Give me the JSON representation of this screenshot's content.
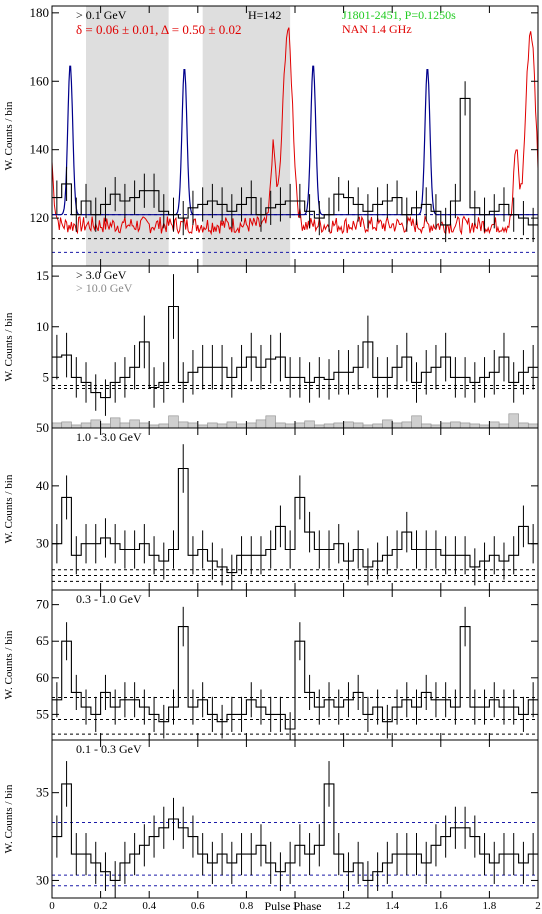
{
  "figure": {
    "xlabel": "Pulse Phase",
    "source_label": "J1801-2451, P=0.1250s",
    "radio_label": "NAN 1.4 GHz",
    "colors": {
      "hist": "#000000",
      "radio": "#e00000",
      "fit": "#00008b",
      "highE": "#8a8a8a",
      "offpulse": "#dedede",
      "source_label": "#22cc22",
      "radio_label": "#e00000"
    }
  },
  "chart_data": [
    {
      "type": "histogram",
      "panel": "> 0.1 GeV",
      "energy_label": "> 0.1 GeV",
      "ylabel": "W. Counts / bin",
      "xlim": [
        0,
        2
      ],
      "ylim": [
        106,
        182
      ],
      "yticks": [
        120,
        140,
        160,
        180
      ],
      "stat_delta": "δ = 0.06 ± 0.01, Δ = 0.50 ± 0.02",
      "stat_H": "H=142",
      "offpulse": [
        [
          0.14,
          0.48
        ],
        [
          0.62,
          0.98
        ]
      ],
      "bin_values": [
        126,
        130,
        121,
        125,
        121,
        124,
        127,
        125,
        126,
        128,
        128,
        122,
        121,
        120,
        123,
        124,
        125,
        124,
        122,
        124,
        126,
        121,
        123,
        124,
        125,
        125,
        122,
        120,
        121,
        127,
        126,
        124,
        122,
        124,
        125,
        126,
        121,
        123,
        124,
        122,
        118,
        125,
        155,
        123,
        121,
        122,
        124,
        121,
        120,
        118
      ],
      "bin_errors": [
        5,
        5,
        5,
        5,
        5,
        5,
        5,
        5,
        5,
        5,
        5,
        5,
        5,
        5,
        5,
        5,
        5,
        5,
        5,
        5,
        5,
        5,
        5,
        5,
        5,
        5,
        5,
        5,
        5,
        5,
        5,
        5,
        5,
        5,
        5,
        5,
        5,
        5,
        5,
        5,
        5,
        5,
        5,
        5,
        5,
        5,
        5,
        5,
        5,
        5
      ],
      "background_levels": [
        114,
        110
      ],
      "fit_baseline": 121,
      "fit_peaks": [
        {
          "center": 0.075,
          "height": 44,
          "width": 0.01
        },
        {
          "center": 0.545,
          "height": 43,
          "width": 0.01
        }
      ],
      "radio_peaks": [
        {
          "center": 0.97,
          "height": 57,
          "width": 0.02
        },
        {
          "center": 0.91,
          "height": 22,
          "width": 0.01
        }
      ],
      "radio_baseline": 118
    },
    {
      "type": "histogram",
      "panel": "> 3.0 GeV",
      "energy_label": "> 3.0 GeV",
      "energy_label2": "> 10.0 GeV",
      "ylabel": "W. Counts / bin",
      "xlim": [
        0,
        2
      ],
      "ylim": [
        0,
        16
      ],
      "yticks": [
        5,
        10,
        15
      ],
      "bin_values": [
        7,
        7.2,
        5,
        4.5,
        3.5,
        3,
        4.5,
        5,
        6,
        8.5,
        4,
        4.5,
        12,
        4.5,
        5.5,
        6,
        6,
        6,
        5,
        6,
        7,
        6,
        6.8,
        7,
        5,
        5,
        4.5,
        5,
        4.8,
        5.5,
        5.5,
        6,
        8.5,
        5,
        5,
        6,
        7,
        4.5,
        5.5,
        6,
        7,
        5,
        5,
        4.5,
        5,
        5.5,
        7,
        4.5,
        5.5,
        6
      ],
      "bin_errors": [
        2.2,
        2.2,
        2,
        2,
        1.8,
        1.8,
        2,
        2,
        2.2,
        2.6,
        2,
        2,
        3.2,
        2,
        2.2,
        2.2,
        2.2,
        2.2,
        2,
        2.2,
        2.4,
        2.2,
        2.4,
        2.4,
        2,
        2,
        2,
        2,
        2,
        2.2,
        2.2,
        2.2,
        2.6,
        2,
        2,
        2.2,
        2.4,
        2,
        2.2,
        2.2,
        2.4,
        2,
        2,
        2,
        2,
        2.2,
        2.4,
        2,
        2.2,
        2.2
      ],
      "high_energy_values": [
        0.5,
        0.6,
        0.3,
        0.5,
        0.8,
        0.4,
        1,
        0.5,
        0.8,
        0.5,
        0.3,
        0.4,
        1.2,
        0.6,
        0.5,
        0.3,
        0.5,
        0.4,
        0.6,
        0.4,
        0.5,
        0.8,
        1.2,
        0.5,
        0.4,
        0.5,
        0.7,
        0.3,
        0.4,
        0.5,
        0.6,
        0.5,
        0.3,
        0.4,
        0.8,
        0.5,
        0.6,
        1.2,
        0.4,
        0.3,
        0.5,
        0.6,
        0.5,
        0.4,
        0.3,
        0.6,
        0.4,
        1.4,
        0.5,
        0.4
      ],
      "background_levels": [
        4.2,
        3.9
      ]
    },
    {
      "type": "histogram",
      "panel": "1.0 - 3.0 GeV",
      "energy_label": "1.0 - 3.0 GeV",
      "ylabel": "W. Counts / bin",
      "xlim": [
        0,
        2
      ],
      "ylim": [
        22,
        50
      ],
      "yticks": [
        30,
        40,
        50
      ],
      "bin_values": [
        30,
        38,
        28,
        30,
        30,
        31,
        30,
        29,
        29,
        30,
        28,
        27,
        29,
        43,
        28,
        29,
        27,
        26,
        25,
        28,
        28,
        28,
        29,
        33,
        29,
        38,
        32,
        29,
        29,
        30,
        27,
        29,
        26,
        27,
        28,
        29,
        32,
        29,
        29,
        29,
        28,
        28,
        28,
        26,
        27,
        28,
        27,
        28,
        33,
        30
      ],
      "bin_errors": [
        3.4,
        3.8,
        3.3,
        3.4,
        3.4,
        3.4,
        3.4,
        3.3,
        3.3,
        3.4,
        3.3,
        3.2,
        3.3,
        4.2,
        3.3,
        3.3,
        3.2,
        3.2,
        3.1,
        3.3,
        3.3,
        3.3,
        3.3,
        3.6,
        3.3,
        3.8,
        3.5,
        3.3,
        3.3,
        3.4,
        3.2,
        3.3,
        3.2,
        3.2,
        3.3,
        3.3,
        3.5,
        3.3,
        3.3,
        3.3,
        3.3,
        3.3,
        3.3,
        3.2,
        3.2,
        3.3,
        3.2,
        3.3,
        3.6,
        3.4
      ],
      "background_levels": [
        25.5,
        24.5,
        23.5
      ]
    },
    {
      "type": "histogram",
      "panel": "0.3 - 1.0 GeV",
      "energy_label": "0.3 - 1.0 GeV",
      "ylabel": "W. Counts / bin",
      "xlim": [
        0,
        2
      ],
      "ylim": [
        51.5,
        72
      ],
      "yticks": [
        55,
        60,
        65,
        70
      ],
      "bin_values": [
        57,
        65,
        58,
        56,
        55,
        58,
        56,
        57,
        57,
        56,
        55,
        54,
        56,
        67,
        56,
        57,
        55,
        54,
        55,
        55,
        57,
        56,
        55,
        55,
        53,
        65,
        58,
        56,
        57,
        56,
        57,
        58,
        55,
        56,
        54,
        56,
        57,
        56,
        58,
        57,
        57,
        56,
        67,
        56,
        56,
        57,
        56,
        56,
        55,
        57
      ],
      "bin_errors": [
        2.4,
        2.6,
        2.4,
        2.4,
        2.4,
        2.4,
        2.4,
        2.4,
        2.4,
        2.4,
        2.4,
        2.3,
        2.4,
        2.7,
        2.4,
        2.4,
        2.4,
        2.3,
        2.4,
        2.4,
        2.4,
        2.4,
        2.4,
        2.4,
        2.3,
        2.6,
        2.4,
        2.4,
        2.4,
        2.4,
        2.4,
        2.4,
        2.4,
        2.4,
        2.3,
        2.4,
        2.4,
        2.4,
        2.4,
        2.4,
        2.4,
        2.4,
        2.7,
        2.4,
        2.4,
        2.4,
        2.4,
        2.4,
        2.4,
        2.4
      ],
      "background_levels": [
        57.3,
        54.3,
        52.3
      ]
    },
    {
      "type": "histogram",
      "panel": "0.1 - 0.3 GeV",
      "energy_label": "0.1 - 0.3 GeV",
      "ylabel": "W. Counts / bin",
      "xlim": [
        0,
        2
      ],
      "ylim": [
        29,
        38
      ],
      "yticks": [
        30,
        35
      ],
      "bin_values": [
        32.5,
        35.5,
        31.5,
        31.5,
        31,
        30.5,
        30,
        31,
        31.5,
        32,
        32.5,
        33,
        33.5,
        33,
        32.5,
        31.5,
        31,
        31.5,
        31,
        31.5,
        31.5,
        32,
        31,
        30.5,
        31,
        32,
        31.5,
        32,
        35.5,
        31.5,
        30.5,
        31,
        30,
        30.5,
        31,
        31.5,
        31.5,
        31.5,
        31,
        32,
        32.5,
        33,
        33,
        32.5,
        31.5,
        31,
        31.5,
        31.5,
        31,
        31.5
      ],
      "bin_errors": [
        1.2,
        1.3,
        1.2,
        1.2,
        1.2,
        1.1,
        1.1,
        1.2,
        1.2,
        1.2,
        1.2,
        1.2,
        1.2,
        1.2,
        1.2,
        1.2,
        1.2,
        1.2,
        1.2,
        1.2,
        1.2,
        1.2,
        1.2,
        1.1,
        1.2,
        1.2,
        1.2,
        1.2,
        1.3,
        1.2,
        1.1,
        1.2,
        1.1,
        1.1,
        1.2,
        1.2,
        1.2,
        1.2,
        1.2,
        1.2,
        1.2,
        1.2,
        1.2,
        1.2,
        1.2,
        1.2,
        1.2,
        1.2,
        1.2,
        1.2
      ],
      "background_levels": [
        33.3,
        30.3,
        29.7
      ],
      "fit_dashed_levels": [
        33.3,
        29.7
      ]
    }
  ],
  "xticks": [
    0,
    0.2,
    0.4,
    0.6,
    0.8,
    1,
    1.2,
    1.4,
    1.6,
    1.8,
    2
  ]
}
